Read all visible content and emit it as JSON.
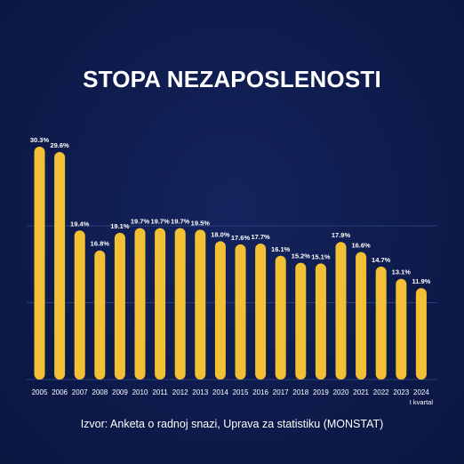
{
  "colors": {
    "background": "#0e1b4c",
    "bar": "#f2c035",
    "text": "#ffffff",
    "grid": "#2d3f7a"
  },
  "chart_data": {
    "type": "bar",
    "title": "STOPA NEZAPOSLENOSTI",
    "source": "Izvor: Anketa o radnoj snazi, Uprava za statistiku (MONSTAT)",
    "categories": [
      "2005",
      "2006",
      "2007",
      "2008",
      "2009",
      "2010",
      "2011",
      "2012",
      "2013",
      "2014",
      "2015",
      "2016",
      "2017",
      "2018",
      "2019",
      "2020",
      "2021",
      "2022",
      "2023",
      "2024"
    ],
    "category_sublabels": {
      "2024": "I kvartal"
    },
    "values": [
      30.3,
      29.6,
      19.4,
      16.8,
      19.1,
      19.7,
      19.7,
      19.7,
      19.5,
      18.0,
      17.6,
      17.7,
      16.1,
      15.2,
      15.1,
      17.9,
      16.6,
      14.7,
      13.1,
      11.9
    ],
    "value_labels": [
      "30.3%",
      "29.6%",
      "19.4%",
      "16.8%",
      "19.1%",
      "19.7%",
      "19.7%",
      "19.7%",
      "19.5%",
      "18.0%",
      "17.6%",
      "17.7%",
      "16.1%",
      "15.2%",
      "15.1%",
      "17.9%",
      "16.6%",
      "14.7%",
      "13.1%",
      "11.9%"
    ],
    "ylim": [
      0,
      30.3
    ],
    "grid": true,
    "legend": "none"
  }
}
